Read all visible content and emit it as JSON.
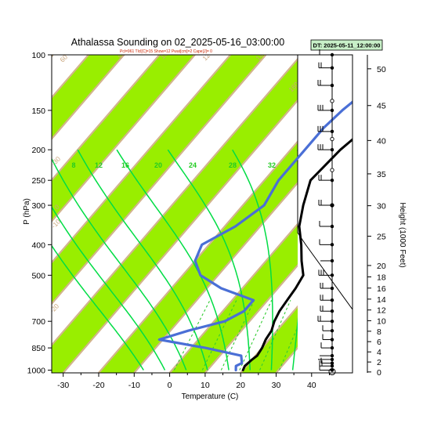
{
  "header": {
    "title": "Athalassa Sounding on 02_2025-05-16_03:00:00",
    "subtitle": "Pcl=961 Tlcl[C]=15 Show=12 Pwat[cm]=2 Cape[J]= 0",
    "badge": "DT: 2025-05-11_12:00:00"
  },
  "colors": {
    "temperature": "#000000",
    "dewpoint": "#4a6fd6",
    "band": "#99ee00",
    "isotherm": "#d2b48c",
    "moist_adiabat": "#00dd44",
    "mixing_ratio": "#33cc33"
  },
  "chart_data": {
    "type": "skew-t log-p sounding",
    "title": "Athalassa Sounding on 02_2025-05-16_03:00:00",
    "xlabel": "Temperature (C)",
    "ylabel": "P (hPa)",
    "y2label": "Height (1000 Feet)",
    "xlim": [
      -33,
      50
    ],
    "ylim": [
      1020,
      100
    ],
    "x_ticks": [
      -30,
      -20,
      -10,
      0,
      10,
      20,
      30,
      40
    ],
    "y_ticks": [
      1000,
      850,
      700,
      500,
      400,
      300,
      250,
      200,
      150,
      100
    ],
    "height_ticks": [
      0,
      2,
      4,
      6,
      8,
      10,
      12,
      14,
      16,
      18,
      20,
      25,
      30,
      35,
      40,
      45,
      50
    ],
    "isotherm_labels": [
      "-30",
      "-20",
      "-10",
      "0",
      "10",
      "20",
      "30"
    ],
    "upper_labels": [
      "60",
      "80",
      "100",
      "120",
      "140",
      "160"
    ],
    "mixing_ratio_labels": [
      "8",
      "12",
      "16",
      "20",
      "24",
      "28",
      "32"
    ],
    "series": [
      {
        "name": "Temperature",
        "points": [
          {
            "p": 1000,
            "t": 20
          },
          {
            "p": 970,
            "t": 19.5
          },
          {
            "p": 925,
            "t": 20
          },
          {
            "p": 900,
            "t": 20.5
          },
          {
            "p": 850,
            "t": 20
          },
          {
            "p": 800,
            "t": 19
          },
          {
            "p": 750,
            "t": 18.5
          },
          {
            "p": 700,
            "t": 17
          },
          {
            "p": 650,
            "t": 16
          },
          {
            "p": 600,
            "t": 15.5
          },
          {
            "p": 550,
            "t": 15
          },
          {
            "p": 500,
            "t": 14
          },
          {
            "p": 450,
            "t": 10
          },
          {
            "p": 400,
            "t": 6
          },
          {
            "p": 350,
            "t": 1
          },
          {
            "p": 300,
            "t": -3
          },
          {
            "p": 250,
            "t": -7
          },
          {
            "p": 200,
            "t": -6
          },
          {
            "p": 170,
            "t": -4
          },
          {
            "p": 150,
            "t": -1
          },
          {
            "p": 130,
            "t": 3
          },
          {
            "p": 115,
            "t": 9
          },
          {
            "p": 100,
            "t": 16
          }
        ]
      },
      {
        "name": "Dewpoint",
        "points": [
          {
            "p": 1000,
            "t": 18
          },
          {
            "p": 970,
            "t": 17
          },
          {
            "p": 950,
            "t": 18
          },
          {
            "p": 900,
            "t": 16
          },
          {
            "p": 850,
            "t": 4
          },
          {
            "p": 800,
            "t": -11
          },
          {
            "p": 750,
            "t": -5
          },
          {
            "p": 700,
            "t": 3
          },
          {
            "p": 650,
            "t": 6
          },
          {
            "p": 600,
            "t": 6
          },
          {
            "p": 550,
            "t": -6
          },
          {
            "p": 500,
            "t": -15
          },
          {
            "p": 450,
            "t": -20
          },
          {
            "p": 400,
            "t": -22
          },
          {
            "p": 350,
            "t": -17
          },
          {
            "p": 300,
            "t": -14
          },
          {
            "p": 250,
            "t": -16
          },
          {
            "p": 200,
            "t": -16
          },
          {
            "p": 170,
            "t": -16
          },
          {
            "p": 150,
            "t": -15
          },
          {
            "p": 130,
            "t": -13
          },
          {
            "p": 100,
            "t": -3
          }
        ]
      }
    ]
  }
}
